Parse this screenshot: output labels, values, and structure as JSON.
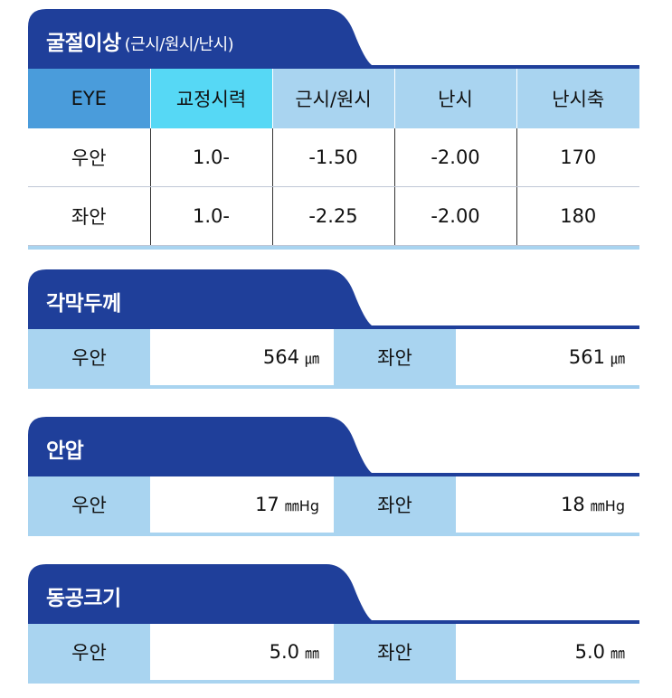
{
  "colors": {
    "tab": "#1f3f9a",
    "header": "#a9d4f0",
    "eye_header": "#4a9cdb",
    "corrected_header": "#56d8f5"
  },
  "refraction": {
    "title": "굴절이상",
    "subtitle": "(근시/원시/난시)",
    "headers": [
      "EYE",
      "교정시력",
      "근시/원시",
      "난시",
      "난시축"
    ],
    "rows": [
      [
        "우안",
        "1.0-",
        "-1.50",
        "-2.00",
        "170"
      ],
      [
        "좌안",
        "1.0-",
        "-2.25",
        "-2.00",
        "180"
      ]
    ]
  },
  "cornea": {
    "title": "각막두께",
    "right_label": "우안",
    "right_value": "564",
    "right_unit": "㎛",
    "left_label": "좌안",
    "left_value": "561",
    "left_unit": "㎛"
  },
  "iop": {
    "title": "안압",
    "right_label": "우안",
    "right_value": "17",
    "right_unit": "㎜Hg",
    "left_label": "좌안",
    "left_value": "18",
    "left_unit": "㎜Hg"
  },
  "pupil": {
    "title": "동공크기",
    "right_label": "우안",
    "right_value": "5.0",
    "right_unit": "㎜",
    "left_label": "좌안",
    "left_value": "5.0",
    "left_unit": "㎜"
  }
}
